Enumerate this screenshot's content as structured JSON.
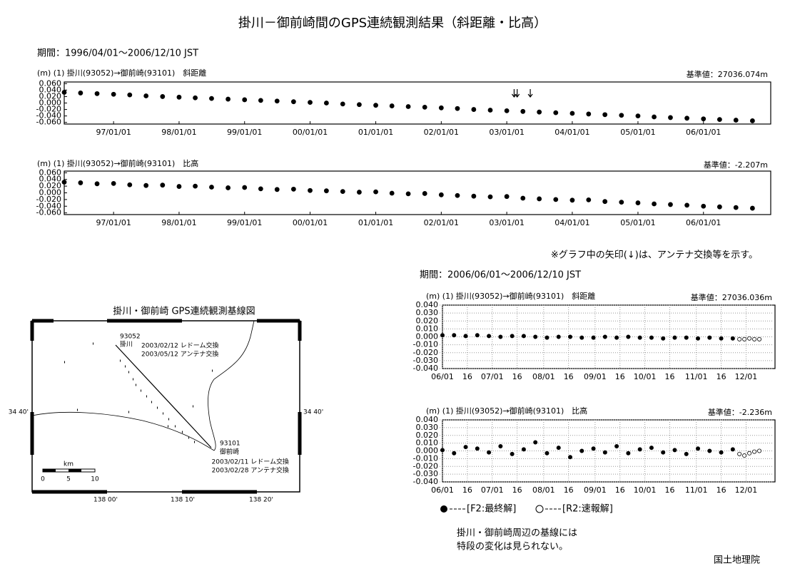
{
  "title": "掛川－御前崎間のGPS連続観測結果（斜距離・比高）",
  "period_long": "期間：1996/04/01～2006/12/10 JST",
  "note": "※グラフ中の矢印(↓)は、アンテナ交換等を示す。",
  "period_short": "期間：2006/06/01～2006/12/10 JST",
  "legend": [
    {
      "name": "[F2:最終解]"
    },
    {
      "name": "[R2:速報解]"
    }
  ],
  "conclusion": [
    "掛川・御前崎周辺の基線には",
    "特段の変化は見られない。"
  ],
  "footer": "国土地理院",
  "map": {
    "title": "掛川・御前崎 GPS連続観測基線図",
    "station_a_id": "93052",
    "station_a_name": "掛川",
    "station_a_notes": [
      "2003/02/12 レドーム交換",
      "2003/05/12 アンテナ交換"
    ],
    "station_b_id": "93101",
    "station_b_name": "御前崎",
    "station_b_notes": [
      "2003/02/11 レドーム交換",
      "2003/02/28 アンテナ交換"
    ],
    "scale_unit": "km",
    "scale_labels": [
      "0",
      "5",
      "10"
    ],
    "lon_labels": [
      "138 00'",
      "138 10'",
      "138 20'"
    ],
    "lat_label_left": "34 40'",
    "lat_label_right": "34 40'"
  },
  "chart_data": [
    {
      "type": "scatter",
      "title": "(m) (1) 掛川(93052)→御前崎(93101)　斜距離",
      "reference": "基準値：27036.074m",
      "color": "#000000",
      "grid": false,
      "xlim": [
        "1996-04-01",
        "2006-12-10"
      ],
      "xticks": [
        {
          "value": "1997-01-01",
          "label": "97/01/01"
        },
        {
          "value": "1998-01-01",
          "label": "98/01/01"
        },
        {
          "value": "1999-01-01",
          "label": "99/01/01"
        },
        {
          "value": "2000-01-01",
          "label": "00/01/01"
        },
        {
          "value": "2001-01-01",
          "label": "01/01/01"
        },
        {
          "value": "2002-01-01",
          "label": "02/01/01"
        },
        {
          "value": "2003-01-01",
          "label": "03/01/01"
        },
        {
          "value": "2004-01-01",
          "label": "04/01/01"
        },
        {
          "value": "2005-01-01",
          "label": "05/01/01"
        },
        {
          "value": "2006-01-01",
          "label": "06/01/01"
        }
      ],
      "ylim": [
        -0.065,
        0.065
      ],
      "yticks": [
        {
          "value": 0.06,
          "label": "0.060"
        },
        {
          "value": 0.04,
          "label": "0.040"
        },
        {
          "value": 0.02,
          "label": "0.020"
        },
        {
          "value": 0,
          "label": "0.000"
        },
        {
          "value": -0.02,
          "label": "-0.020"
        },
        {
          "value": -0.04,
          "label": "-0.040"
        },
        {
          "value": -0.06,
          "label": "-0.060"
        }
      ],
      "arrows": [
        "2003-02-11",
        "2003-02-28",
        "2003-05-12"
      ],
      "series": [
        {
          "marker": "filled",
          "x": [
            "1996-04-01",
            "1996-07-01",
            "1996-10-01",
            "1997-01-01",
            "1997-04-01",
            "1997-07-01",
            "1997-10-01",
            "1998-01-01",
            "1998-04-01",
            "1998-07-01",
            "1998-10-01",
            "1999-01-01",
            "1999-04-01",
            "1999-07-01",
            "1999-10-01",
            "2000-01-01",
            "2000-04-01",
            "2000-07-01",
            "2000-10-01",
            "2001-01-01",
            "2001-04-01",
            "2001-07-01",
            "2001-10-01",
            "2002-01-01",
            "2002-04-01",
            "2002-07-01",
            "2002-10-01",
            "2003-01-01",
            "2003-04-01",
            "2003-07-01",
            "2003-10-01",
            "2004-01-01",
            "2004-04-01",
            "2004-07-01",
            "2004-10-01",
            "2005-01-01",
            "2005-04-01",
            "2005-07-01",
            "2005-10-01",
            "2006-01-01",
            "2006-04-01",
            "2006-07-01",
            "2006-10-01"
          ],
          "values": [
            0.033,
            0.031,
            0.029,
            0.027,
            0.025,
            0.022,
            0.02,
            0.018,
            0.016,
            0.014,
            0.012,
            0.01,
            0.008,
            0.006,
            0.004,
            0.002,
            0.0,
            -0.003,
            -0.005,
            -0.007,
            -0.009,
            -0.011,
            -0.013,
            -0.015,
            -0.017,
            -0.02,
            -0.022,
            -0.024,
            -0.026,
            -0.028,
            -0.03,
            -0.032,
            -0.034,
            -0.036,
            -0.038,
            -0.04,
            -0.043,
            -0.045,
            -0.047,
            -0.049,
            -0.051,
            -0.053,
            -0.055
          ]
        }
      ]
    },
    {
      "type": "scatter",
      "title": "(m) (1) 掛川(93052)→御前崎(93101)　比高",
      "reference": "基準値：-2.207m",
      "color": "#000000",
      "grid": false,
      "xlim": [
        "1996-04-01",
        "2006-12-10"
      ],
      "xticks": [
        {
          "value": "1997-01-01",
          "label": "97/01/01"
        },
        {
          "value": "1998-01-01",
          "label": "98/01/01"
        },
        {
          "value": "1999-01-01",
          "label": "99/01/01"
        },
        {
          "value": "2000-01-01",
          "label": "00/01/01"
        },
        {
          "value": "2001-01-01",
          "label": "01/01/01"
        },
        {
          "value": "2002-01-01",
          "label": "02/01/01"
        },
        {
          "value": "2003-01-01",
          "label": "03/01/01"
        },
        {
          "value": "2004-01-01",
          "label": "04/01/01"
        },
        {
          "value": "2005-01-01",
          "label": "05/01/01"
        },
        {
          "value": "2006-01-01",
          "label": "06/01/01"
        }
      ],
      "ylim": [
        -0.065,
        0.065
      ],
      "yticks": [
        {
          "value": 0.06,
          "label": "0.060"
        },
        {
          "value": 0.04,
          "label": "0.040"
        },
        {
          "value": 0.02,
          "label": "0.020"
        },
        {
          "value": 0,
          "label": "0.000"
        },
        {
          "value": -0.02,
          "label": "-0.020"
        },
        {
          "value": -0.04,
          "label": "-0.040"
        },
        {
          "value": -0.06,
          "label": "-0.060"
        }
      ],
      "series": [
        {
          "marker": "filled",
          "x": [
            "1996-04-01",
            "1996-07-01",
            "1996-10-01",
            "1997-01-01",
            "1997-04-01",
            "1997-07-01",
            "1997-10-01",
            "1998-01-01",
            "1998-04-01",
            "1998-07-01",
            "1998-10-01",
            "1999-01-01",
            "1999-04-01",
            "1999-07-01",
            "1999-10-01",
            "2000-01-01",
            "2000-04-01",
            "2000-07-01",
            "2000-10-01",
            "2001-01-01",
            "2001-04-01",
            "2001-07-01",
            "2001-10-01",
            "2002-01-01",
            "2002-04-01",
            "2002-07-01",
            "2002-10-01",
            "2003-01-01",
            "2003-04-01",
            "2003-07-01",
            "2003-10-01",
            "2004-01-01",
            "2004-04-01",
            "2004-07-01",
            "2004-10-01",
            "2005-01-01",
            "2005-04-01",
            "2005-07-01",
            "2005-10-01",
            "2006-01-01",
            "2006-04-01",
            "2006-07-01",
            "2006-10-01"
          ],
          "values": [
            0.032,
            0.03,
            0.027,
            0.028,
            0.024,
            0.022,
            0.023,
            0.019,
            0.02,
            0.017,
            0.015,
            0.016,
            0.012,
            0.01,
            0.011,
            0.007,
            0.006,
            0.004,
            0.002,
            0.003,
            -0.001,
            -0.003,
            -0.002,
            -0.006,
            -0.008,
            -0.01,
            -0.012,
            -0.011,
            -0.016,
            -0.018,
            -0.02,
            -0.022,
            -0.021,
            -0.026,
            -0.028,
            -0.03,
            -0.033,
            -0.035,
            -0.037,
            -0.04,
            -0.042,
            -0.044,
            -0.046
          ]
        }
      ]
    },
    {
      "type": "scatter",
      "title": "(m) (1) 掛川(93052)→御前崎(93101)　斜距離",
      "reference": "基準値：27036.036m",
      "color": "#000000",
      "grid": true,
      "xlim": [
        "2006-06-01",
        "2006-12-15"
      ],
      "xticks": [
        {
          "value": "2006-06-01",
          "label": "06/01"
        },
        {
          "value": "2006-06-16",
          "label": "16"
        },
        {
          "value": "2006-07-01",
          "label": "07/01"
        },
        {
          "value": "2006-07-16",
          "label": "16"
        },
        {
          "value": "2006-08-01",
          "label": "08/01"
        },
        {
          "value": "2006-08-16",
          "label": "16"
        },
        {
          "value": "2006-09-01",
          "label": "09/01"
        },
        {
          "value": "2006-09-16",
          "label": "16"
        },
        {
          "value": "2006-10-01",
          "label": "10/01"
        },
        {
          "value": "2006-10-16",
          "label": "16"
        },
        {
          "value": "2006-11-01",
          "label": "11/01"
        },
        {
          "value": "2006-11-16",
          "label": "16"
        },
        {
          "value": "2006-12-01",
          "label": "12/01"
        }
      ],
      "ylim": [
        -0.04,
        0.04
      ],
      "yticks": [
        {
          "value": 0.04,
          "label": "0.040"
        },
        {
          "value": 0.03,
          "label": "0.030"
        },
        {
          "value": 0.02,
          "label": "0.020"
        },
        {
          "value": 0.01,
          "label": "0.010"
        },
        {
          "value": 0,
          "label": "0.000"
        },
        {
          "value": -0.01,
          "label": "-0.010"
        },
        {
          "value": -0.02,
          "label": "-0.020"
        },
        {
          "value": -0.03,
          "label": "-0.030"
        },
        {
          "value": -0.04,
          "label": "-0.040"
        }
      ],
      "series": [
        {
          "marker": "filled",
          "x": [
            "2006-06-01",
            "2006-06-08",
            "2006-06-15",
            "2006-06-22",
            "2006-06-29",
            "2006-07-06",
            "2006-07-13",
            "2006-07-20",
            "2006-07-27",
            "2006-08-03",
            "2006-08-10",
            "2006-08-17",
            "2006-08-24",
            "2006-08-31",
            "2006-09-07",
            "2006-09-14",
            "2006-09-21",
            "2006-09-28",
            "2006-10-05",
            "2006-10-12",
            "2006-10-19",
            "2006-10-26",
            "2006-11-02",
            "2006-11-09",
            "2006-11-16",
            "2006-11-23"
          ],
          "values": [
            0.002,
            0.002,
            0.001,
            0.002,
            0.001,
            0.0,
            0.001,
            0.001,
            0.0,
            -0.001,
            0.0,
            0.0,
            -0.001,
            -0.001,
            0.0,
            -0.001,
            0.0,
            -0.001,
            -0.001,
            -0.002,
            -0.001,
            -0.001,
            -0.002,
            -0.001,
            -0.002,
            -0.002
          ]
        },
        {
          "marker": "open",
          "x": [
            "2006-11-27",
            "2006-11-30",
            "2006-12-03",
            "2006-12-06",
            "2006-12-09"
          ],
          "values": [
            -0.003,
            -0.003,
            -0.002,
            -0.003,
            -0.003
          ]
        }
      ]
    },
    {
      "type": "scatter",
      "title": "(m) (1) 掛川(93052)→御前崎(93101)　比高",
      "reference": "基準値：-2.236m",
      "color": "#000000",
      "grid": true,
      "xlim": [
        "2006-06-01",
        "2006-12-15"
      ],
      "xticks": [
        {
          "value": "2006-06-01",
          "label": "06/01"
        },
        {
          "value": "2006-06-16",
          "label": "16"
        },
        {
          "value": "2006-07-01",
          "label": "07/01"
        },
        {
          "value": "2006-07-16",
          "label": "16"
        },
        {
          "value": "2006-08-01",
          "label": "08/01"
        },
        {
          "value": "2006-08-16",
          "label": "16"
        },
        {
          "value": "2006-09-01",
          "label": "09/01"
        },
        {
          "value": "2006-09-16",
          "label": "16"
        },
        {
          "value": "2006-10-01",
          "label": "10/01"
        },
        {
          "value": "2006-10-16",
          "label": "16"
        },
        {
          "value": "2006-11-01",
          "label": "11/01"
        },
        {
          "value": "2006-11-16",
          "label": "16"
        },
        {
          "value": "2006-12-01",
          "label": "12/01"
        }
      ],
      "ylim": [
        -0.04,
        0.04
      ],
      "yticks": [
        {
          "value": 0.04,
          "label": "0.040"
        },
        {
          "value": 0.03,
          "label": "0.030"
        },
        {
          "value": 0.02,
          "label": "0.020"
        },
        {
          "value": 0.01,
          "label": "0.010"
        },
        {
          "value": 0,
          "label": "0.000"
        },
        {
          "value": -0.01,
          "label": "-0.010"
        },
        {
          "value": -0.02,
          "label": "-0.020"
        },
        {
          "value": -0.03,
          "label": "-0.030"
        },
        {
          "value": -0.04,
          "label": "-0.040"
        }
      ],
      "series": [
        {
          "marker": "filled",
          "x": [
            "2006-06-01",
            "2006-06-08",
            "2006-06-15",
            "2006-06-22",
            "2006-06-29",
            "2006-07-06",
            "2006-07-13",
            "2006-07-20",
            "2006-07-27",
            "2006-08-03",
            "2006-08-10",
            "2006-08-17",
            "2006-08-24",
            "2006-08-31",
            "2006-09-07",
            "2006-09-14",
            "2006-09-21",
            "2006-09-28",
            "2006-10-05",
            "2006-10-12",
            "2006-10-19",
            "2006-10-26",
            "2006-11-02",
            "2006-11-09",
            "2006-11-16",
            "2006-11-23"
          ],
          "values": [
            0.001,
            -0.003,
            0.005,
            0.003,
            -0.002,
            0.006,
            -0.004,
            0.002,
            0.011,
            -0.003,
            0.004,
            -0.008,
            0.0,
            0.003,
            -0.002,
            0.006,
            -0.003,
            0.002,
            0.004,
            -0.002,
            0.001,
            -0.004,
            0.003,
            0.0,
            -0.002,
            0.002
          ]
        },
        {
          "marker": "open",
          "x": [
            "2006-11-27",
            "2006-11-30",
            "2006-12-03",
            "2006-12-06",
            "2006-12-09"
          ],
          "values": [
            -0.004,
            -0.006,
            -0.003,
            -0.001,
            0.0
          ]
        }
      ]
    }
  ]
}
